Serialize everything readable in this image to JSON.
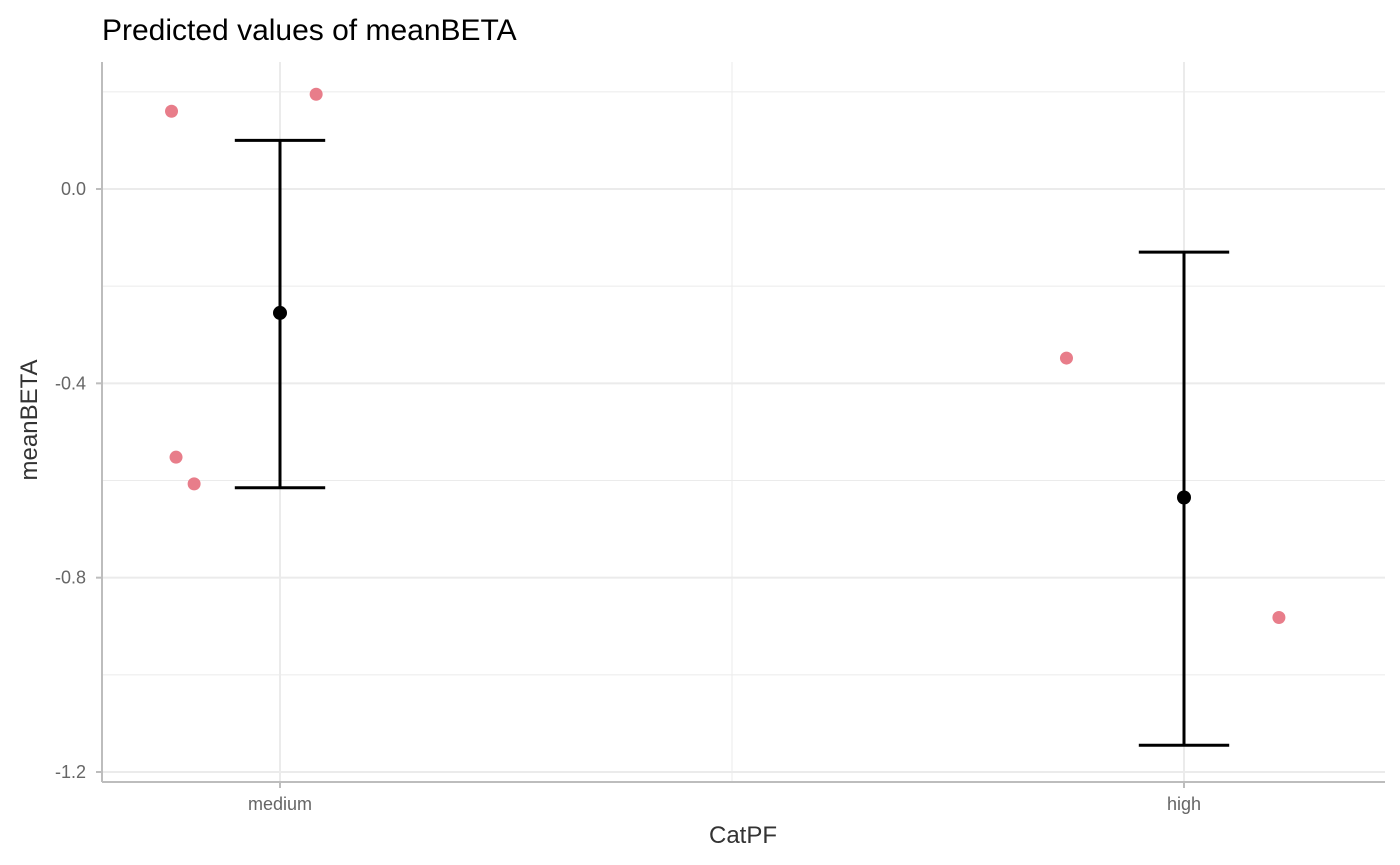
{
  "chart_data": {
    "type": "scatter",
    "title": "Predicted values of meanBETA",
    "xlabel": "CatPF",
    "ylabel": "meanBETA",
    "categories": [
      "medium",
      "high"
    ],
    "ylim": [
      -1.2,
      0.2
    ],
    "y_ticks": [
      "0.0",
      "-0.4",
      "-0.8",
      "-1.2"
    ],
    "y_tick_values": [
      0.0,
      -0.4,
      -0.8,
      -1.2
    ],
    "grid": true,
    "predicted": [
      {
        "category": "medium",
        "value": -0.255,
        "lower": -0.615,
        "upper": 0.1
      },
      {
        "category": "high",
        "value": -0.635,
        "lower": -1.145,
        "upper": -0.13
      }
    ],
    "raw_points": [
      {
        "category": "medium",
        "jitter": -0.12,
        "value": 0.16
      },
      {
        "category": "medium",
        "jitter": 0.04,
        "value": 0.195
      },
      {
        "category": "medium",
        "jitter": -0.115,
        "value": -0.552
      },
      {
        "category": "medium",
        "jitter": -0.095,
        "value": -0.607
      },
      {
        "category": "high",
        "jitter": -0.13,
        "value": -0.348
      },
      {
        "category": "high",
        "jitter": 0.105,
        "value": -0.882
      }
    ],
    "colors": {
      "raw_points": "#e87d8a",
      "predicted": "#000000",
      "grid": "#ebebeb",
      "axis": "#bdbdbd"
    }
  }
}
